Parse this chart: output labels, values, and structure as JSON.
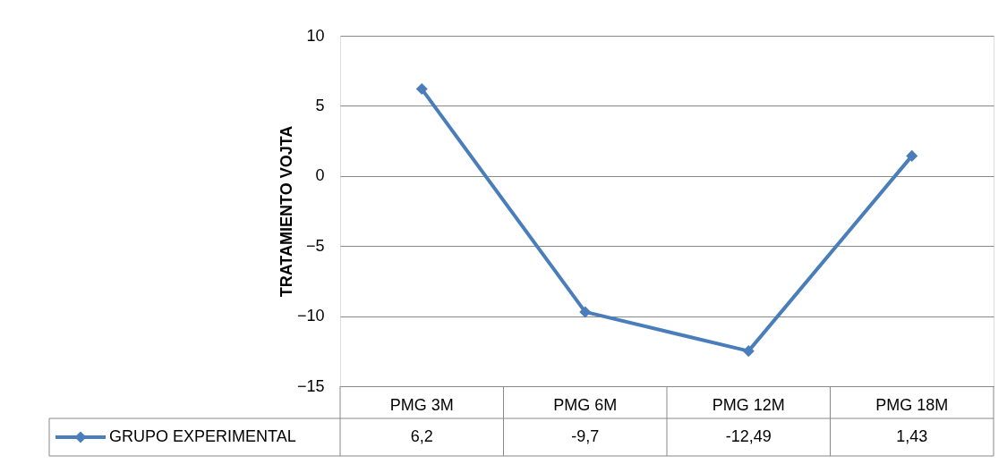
{
  "chart_data": {
    "type": "line",
    "ylabel": "TRATAMIENTO VOJTA",
    "categories": [
      "PMG 3M",
      "PMG 6M",
      "PMG 12M",
      "PMG 18M"
    ],
    "series": [
      {
        "name": "GRUPO EXPERIMENTAL",
        "color": "#4a7ebb",
        "values": [
          6.2,
          -9.7,
          -12.49,
          1.43
        ],
        "value_labels": [
          "6,2",
          "-9,7",
          "-12,49",
          "1,43"
        ]
      }
    ],
    "ylim": [
      -15,
      10
    ],
    "yticks": [
      -15,
      -10,
      -5,
      0,
      5,
      10
    ],
    "grid": "y",
    "legend": "bottom",
    "marker": "diamond",
    "line_style": "solid"
  }
}
